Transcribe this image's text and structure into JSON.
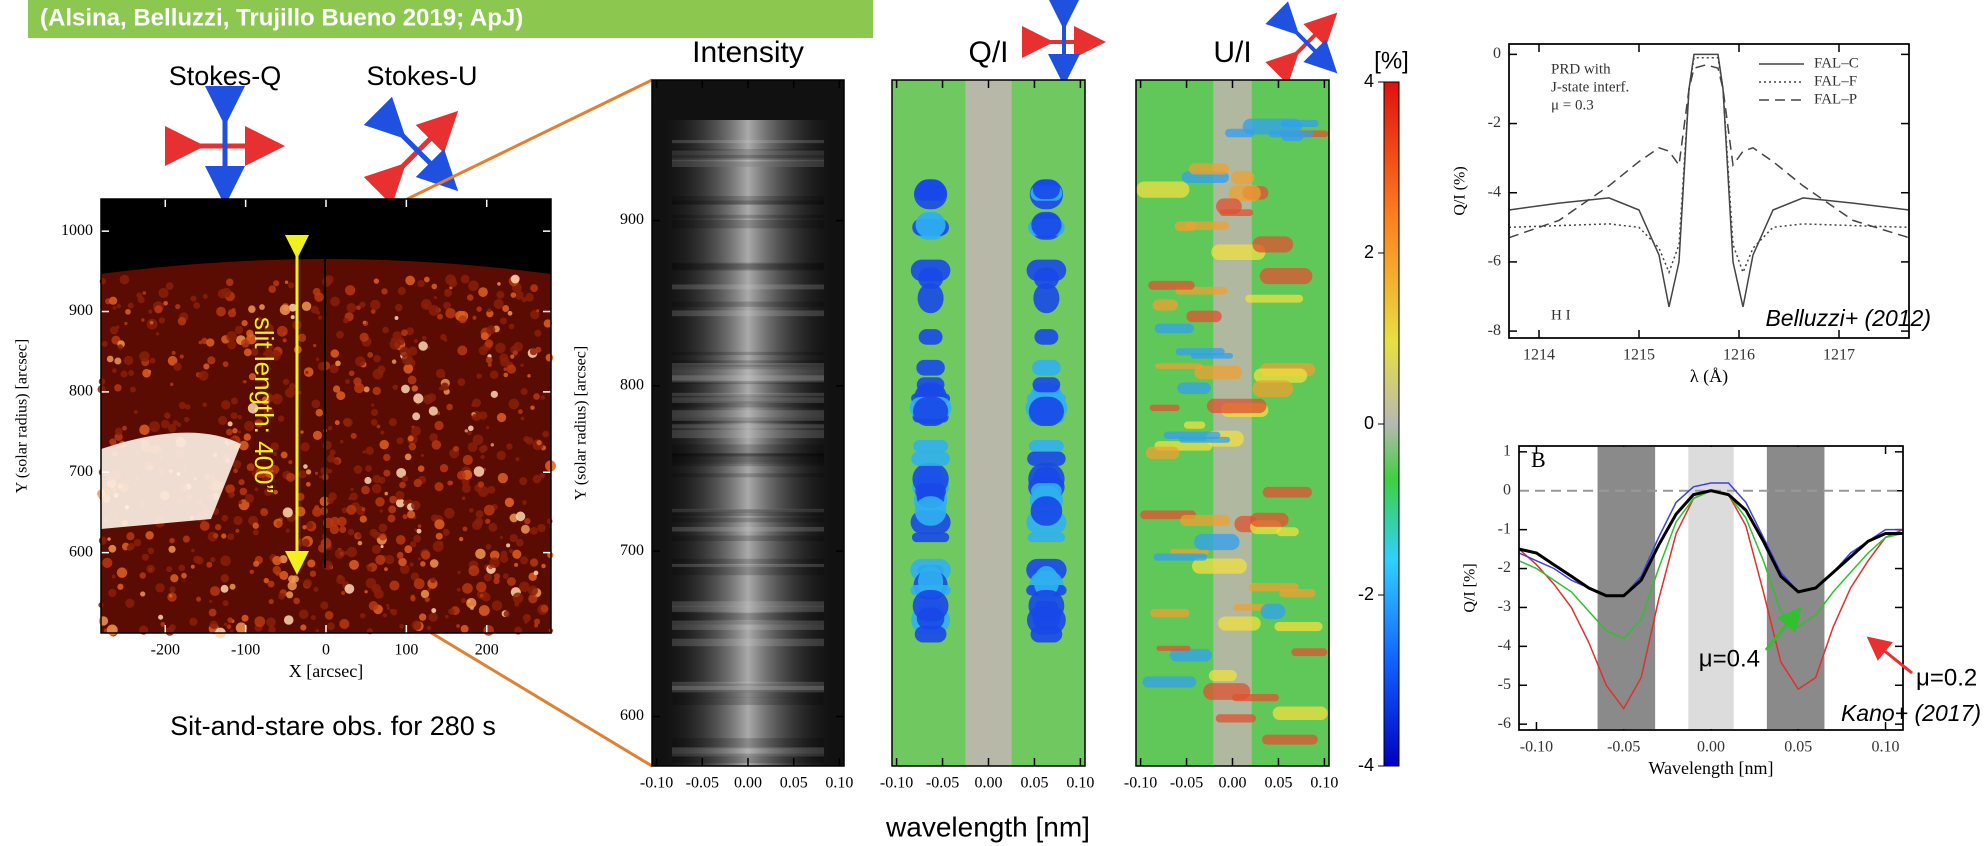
{
  "header": "(Alsina, Belluzzi, Trujillo Bueno 2019; ApJ)",
  "labels": {
    "stokes_q": "Stokes-Q",
    "stokes_u": "Stokes-U",
    "wavelength": "wavelength [nm]"
  },
  "chart_data": [
    {
      "type": "image",
      "style": "solar",
      "xlabel": "X [arcsec]",
      "ylabel": "Y (solar radius) [arcsec]",
      "xlim": [
        -280,
        280
      ],
      "ylim": [
        500,
        1040
      ],
      "xticks": [
        -200,
        -100,
        0,
        100,
        200
      ],
      "yticks": [
        600,
        700,
        800,
        900,
        1000
      ],
      "annotation": "slit length: 400”",
      "caption": "Sit-and-stare obs. for 280 s"
    },
    {
      "type": "image",
      "style": "intensity",
      "title": "Intensity",
      "ylabel": "Y (solar radius) [arcsec]",
      "xlim": [
        -0.105,
        0.105
      ],
      "ylim": [
        570,
        985
      ],
      "xticks": [
        {
          "value": -0.1,
          "label": "-0.10"
        },
        -0.05,
        {
          "value": 0,
          "label": "0.00"
        },
        0.05,
        {
          "value": 0.1,
          "label": "0.10"
        }
      ],
      "yticks": [
        600,
        700,
        800,
        900
      ]
    },
    {
      "type": "image",
      "style": "qi",
      "title": "Q/I",
      "xlim": [
        -0.105,
        0.105
      ],
      "ylim": [
        570,
        985
      ],
      "xticks": [
        {
          "value": -0.1,
          "label": "-0.10"
        },
        -0.05,
        {
          "value": 0,
          "label": "0.00"
        },
        0.05,
        {
          "value": 0.1,
          "label": "0.10"
        }
      ]
    },
    {
      "type": "image",
      "style": "ui",
      "title": "U/I",
      "xlim": [
        -0.105,
        0.105
      ],
      "ylim": [
        570,
        985
      ],
      "xticks": [
        {
          "value": -0.1,
          "label": "-0.10"
        },
        -0.05,
        {
          "value": 0,
          "label": "0.00"
        },
        0.05,
        {
          "value": 0.1,
          "label": "0.10"
        }
      ]
    },
    {
      "type": "colorbar",
      "title": "[%]",
      "ylim": [
        -4,
        4
      ],
      "yticks": [
        4,
        2,
        0,
        -2,
        -4
      ]
    },
    {
      "type": "line",
      "xlabel": "λ (Å)",
      "ylabel": "Q/I (%)",
      "xlim": [
        1213.7,
        1217.7
      ],
      "ylim": [
        -8.2,
        0.3
      ],
      "xticks": [
        1214,
        1215,
        1216,
        1217
      ],
      "yticks": [
        0,
        -2,
        -4,
        -6,
        -8
      ],
      "legend": "upper right",
      "notes": [
        "PRD with",
        "J-state interf.",
        "μ = 0.3"
      ],
      "element_label": "H I",
      "credit": "Belluzzi+ (2012)",
      "x": [
        1213.7,
        1214.2,
        1214.7,
        1215.0,
        1215.2,
        1215.3,
        1215.4,
        1215.5,
        1215.55,
        1215.67,
        1215.79,
        1215.84,
        1215.94,
        1216.04,
        1216.14,
        1216.34,
        1216.64,
        1217.14,
        1217.7
      ],
      "series": [
        {
          "name": "FAL–C",
          "color": "#444444",
          "dash": "solid",
          "values": [
            -4.5,
            -4.3,
            -4.15,
            -4.5,
            -5.8,
            -7.3,
            -6.0,
            -1.0,
            0.0,
            0.0,
            0.0,
            -1.0,
            -6.0,
            -7.3,
            -5.8,
            -4.5,
            -4.15,
            -4.3,
            -4.5
          ]
        },
        {
          "name": "FAL–F",
          "color": "#444444",
          "dash": "dotted",
          "values": [
            -5.0,
            -4.95,
            -4.9,
            -5.0,
            -5.6,
            -6.3,
            -5.5,
            -1.0,
            -0.1,
            -0.1,
            -0.1,
            -1.0,
            -5.5,
            -6.3,
            -5.6,
            -5.0,
            -4.9,
            -4.95,
            -5.0
          ]
        },
        {
          "name": "FAL–P",
          "color": "#444444",
          "dash": "dashed",
          "values": [
            -5.3,
            -4.8,
            -3.8,
            -3.1,
            -2.7,
            -2.8,
            -3.2,
            -1.0,
            -0.4,
            -0.3,
            -0.4,
            -1.0,
            -3.2,
            -2.8,
            -2.7,
            -3.1,
            -3.8,
            -4.8,
            -5.3
          ]
        }
      ]
    },
    {
      "type": "line",
      "xlabel": "Wavelength [nm]",
      "ylabel": "Q/I [%]",
      "xlim": [
        -0.11,
        0.11
      ],
      "ylim": [
        -6.15,
        1.15
      ],
      "xticks": [
        {
          "value": -0.1,
          "label": "-0.10"
        },
        -0.05,
        {
          "value": 0,
          "label": "0.00"
        },
        0.05,
        {
          "value": 0.1,
          "label": "0.10"
        }
      ],
      "yticks": [
        1,
        0,
        -1,
        -2,
        -3,
        -4,
        -5,
        -6
      ],
      "panel_label": "B",
      "credit": "Kano+ (2017)",
      "annotations": [
        "μ=0.4",
        "μ=0.2"
      ],
      "reference_line": 0,
      "bands": [
        {
          "from": -0.065,
          "to": -0.032,
          "color": "#8a8a8a"
        },
        {
          "from": -0.013,
          "to": 0.013,
          "color": "#dcdcdc"
        },
        {
          "from": 0.032,
          "to": 0.065,
          "color": "#8a8a8a"
        }
      ],
      "x": [
        -0.11,
        -0.1,
        -0.09,
        -0.08,
        -0.07,
        -0.06,
        -0.05,
        -0.04,
        -0.03,
        -0.02,
        -0.01,
        0,
        0.01,
        0.02,
        0.03,
        0.04,
        0.05,
        0.06,
        0.07,
        0.08,
        0.09,
        0.1,
        0.11
      ],
      "series": [
        {
          "color": "#e03030",
          "values": [
            -1.5,
            -1.9,
            -2.4,
            -3.0,
            -3.9,
            -5.0,
            -5.6,
            -4.8,
            -2.8,
            -1.1,
            -0.2,
            0,
            -0.1,
            -0.9,
            -2.6,
            -4.4,
            -5.1,
            -4.8,
            -3.5,
            -2.5,
            -1.8,
            -1.2,
            -1.0
          ]
        },
        {
          "color": "#30c030",
          "values": [
            -1.8,
            -2.0,
            -2.3,
            -2.6,
            -3.1,
            -3.6,
            -3.8,
            -3.3,
            -2.0,
            -0.8,
            -0.2,
            0,
            -0.1,
            -0.7,
            -1.8,
            -3.1,
            -3.5,
            -3.2,
            -2.6,
            -2.1,
            -1.6,
            -1.2,
            -1.1
          ]
        },
        {
          "color": "#4040e0",
          "values": [
            -1.6,
            -1.8,
            -2.0,
            -2.3,
            -2.5,
            -2.7,
            -2.7,
            -2.2,
            -1.2,
            -0.3,
            0.1,
            0.2,
            0.2,
            -0.3,
            -1.2,
            -2.1,
            -2.6,
            -2.5,
            -2.1,
            -1.6,
            -1.3,
            -1.0,
            -1.0
          ]
        },
        {
          "color": "#000000",
          "width": 3,
          "values": [
            -1.5,
            -1.6,
            -1.9,
            -2.2,
            -2.5,
            -2.7,
            -2.7,
            -2.3,
            -1.4,
            -0.6,
            -0.1,
            0,
            -0.1,
            -0.5,
            -1.3,
            -2.2,
            -2.6,
            -2.5,
            -2.1,
            -1.7,
            -1.3,
            -1.1,
            -1.1
          ]
        }
      ]
    }
  ]
}
